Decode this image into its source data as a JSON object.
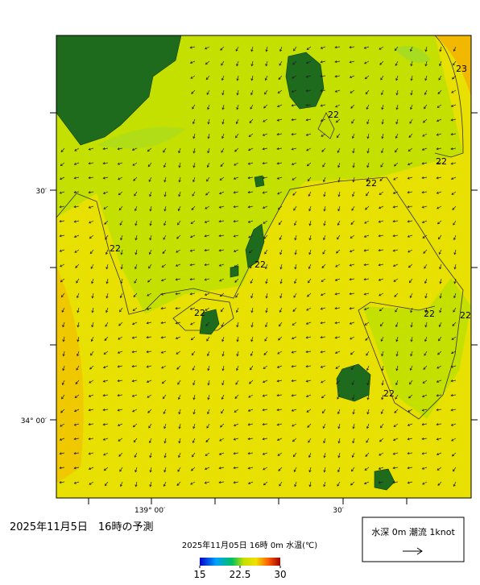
{
  "header": {
    "title": "2025年11月5日　16時の予測"
  },
  "map": {
    "lat_labels": [
      "30′",
      "34° 00′"
    ],
    "lon_labels": [
      "139° 00′",
      "30′"
    ],
    "contour_labels": [
      "23",
      "22",
      "22",
      "22",
      "22",
      "22",
      "22",
      "22",
      "22",
      "22"
    ]
  },
  "colorbar": {
    "title": "2025年11月05日 16時 0m 水温(℃)",
    "ticks": [
      15,
      22.5,
      30
    ]
  },
  "legend": {
    "text": "水深 0m 潮流 1knot"
  }
}
